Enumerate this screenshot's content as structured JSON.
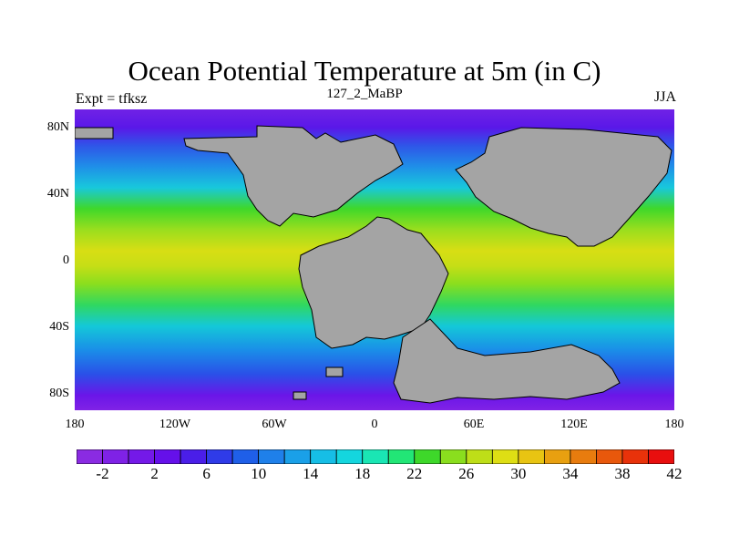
{
  "title": "Ocean Potential Temperature at 5m (in C)",
  "left_string": "Expt = tfksz",
  "center_string": "127_2_MaBP",
  "right_string": "JJA",
  "lat_labels": [
    "80N",
    "40N",
    "0",
    "40S",
    "80S"
  ],
  "lon_labels": [
    "180",
    "120W",
    "60W",
    "0",
    "60E",
    "120E",
    "180"
  ],
  "colorbar": {
    "labels": [
      "-2",
      "2",
      "6",
      "10",
      "14",
      "18",
      "22",
      "26",
      "30",
      "34",
      "38",
      "42"
    ],
    "colors": [
      "#8a2be2",
      "#7f22e6",
      "#7419e8",
      "#6510ea",
      "#4a1ee8",
      "#2f3be8",
      "#1f5fe8",
      "#1f80ea",
      "#1aa0e8",
      "#16bee6",
      "#14d6de",
      "#1ae6b4",
      "#22e676",
      "#3ed82a",
      "#8ade1e",
      "#bede18",
      "#dede14",
      "#e8c412",
      "#e8a010",
      "#e87c0e",
      "#e8580c",
      "#e8320a",
      "#e80e0e"
    ]
  },
  "colors": {
    "land": "#a4a4a4",
    "coast": "#000000"
  }
}
